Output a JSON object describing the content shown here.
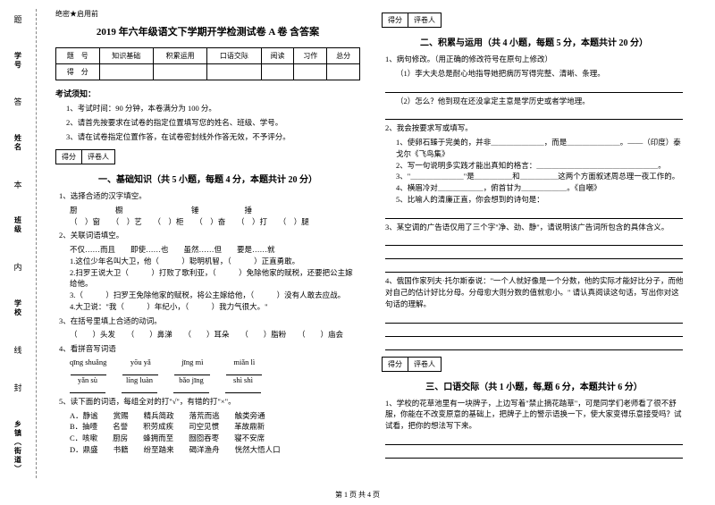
{
  "binding": {
    "labels": [
      "学号",
      "姓名",
      "班级",
      "学校",
      "乡镇（街道）"
    ],
    "marks": [
      "题",
      "答",
      "本",
      "内",
      "线",
      "封"
    ]
  },
  "secret": "绝密★启用前",
  "title": "2019 年六年级语文下学期开学检测试卷 A 卷  含答案",
  "score_table": {
    "row1": [
      "题　号",
      "知识基础",
      "积累运用",
      "口语交际",
      "阅读",
      "习作",
      "总分"
    ],
    "row2": [
      "得　分",
      "",
      "",
      "",
      "",
      "",
      ""
    ]
  },
  "notice_h": "考试须知：",
  "notices": [
    "1、考试时间：90 分钟，本卷满分为 100 分。",
    "2、请首先按要求在试卷的指定位置填写您的姓名、班级、学号。",
    "3、请在试卷指定位置作答，在试卷密封线外作答无效，不予评分。"
  ],
  "scorebox": {
    "a": "得分",
    "b": "评卷人"
  },
  "sec1_h": "一、基础知识（共 5 小题，每题 4 分，本题共计 20 分）",
  "q1": "1、选择合适的汉字填空。",
  "q1_row1": "厨　　　　　橱　　　　　　　　　锤　　　　　　捶",
  "q1_row2": "（　）窗　　（　）艺　　（　）柜　　（　）奋　　（　）打　　（　）腿",
  "q2": "2、关联词语填空。",
  "q2_opts": "不仅……而且　　即使……也　　虽然……但　　要是……就",
  "q2_1": "1.这位少年名叫大卫，他（　　　）聪明机智，（　　　）正直勇敢。",
  "q2_2": "2.扫罗王说大卫（　　　）打败了歌利亚，（　　　）免除他家的赋税，还要把公主嫁给他。",
  "q2_3": "3.（　　　）扫罗王免除他家的赋税，将公主嫁给他，（　　　）没有人敢去应战。",
  "q2_4": "4.大卫说：\"我（　　　）年纪小，（　　　）我力气很大。\"",
  "q3": "3、在括号里填上合适的动词。",
  "q3_sub": "（　　）头发　　（　　）鼻涕　　（　　）耳朵　　（　　）脂粉　　（　　）庙会",
  "q4": "4、看拼音写词语",
  "q4_pinyin": [
    "qīng shuǎng",
    "yōu yǎ",
    "jīng mì",
    "miǎn lì"
  ],
  "q4_pinyin2": [
    "yǎn sù",
    "líng luàn",
    "bǎo jīng",
    "shì shì"
  ],
  "q5": "5、读下面的词语，每组全对的打\"√\"，有错的打\"×\"。",
  "q5a": "A．静谧　　赏赐　　精兵简政　　落荒而逃　　触类旁通",
  "q5b": "B．抽噎　　名誉　　积劳成疾　　司空见惯　　革故鼎新",
  "q5c": "C．咳嗽　　厨房　　蜂拥而至　　囫囵吞枣　　寝不安席",
  "q5d": "D．鼎盛　　书籍　　纷至踏来　　碣洋渔舟　　恍然大悟人口",
  "sec2_h": "二、积累与运用（共 4 小题，每题 5 分，本题共计 20 分）",
  "q2_1h": "1、病句修改。（用正确的修改符号在原句上修改）",
  "q2_1a": "（1）李大夫总是耐心地指导她把病历写得完整、清晰、条理。",
  "q2_1b": "（2）怎么？他到现在还没拿定主意是学历史或者学地理。",
  "q2_2h": "2、我会按要求写或填写。",
  "q2_2a": "1、使卵石臻于完美的，并非＿＿＿＿＿＿＿，而是＿＿＿＿＿＿＿。——（印度）泰戈尔《飞鸟集》",
  "q2_2b": "2、写一句说明多实践才能出真知的格言：＿＿＿＿＿＿＿＿＿＿＿＿＿＿＿＿。",
  "q2_2c": "3、\"＿＿＿＿＿＿＿\"是＿＿＿＿＿和＿＿＿＿＿这两个方面叙述周总理一夜工作的。",
  "q2_2d": "4、横眉冷对＿＿＿＿＿＿，俯首甘为＿＿＿＿＿＿。《自嘲》",
  "q2_2e": "5、比喻人的清廉正直，你会想到的诗句是：",
  "q2_3h": "3、某空调的广告语仅用了三个字\"净、劲、静\"，请说明该广告词所包含的具体含义。",
  "q2_4h": "4、俄国作家列夫·托尔斯泰说：\"一个人就好像是一个分数，他的实际才能好比分子，而他对自己的估计好比分母。分母愈大则分数的值就愈小。\"  请认真阅读这句话，写出你对这句话的理解。",
  "sec3_h": "三、口语交际（共 1 小题，每,题 6 分，本题共计 6 分）",
  "q3_1": "1、学校的花草池里有一块牌子，上边写着\"禁止摘花踏草\"，可是同学们老师看了很不舒服，你能在不改变原意的基础上，把牌子上的警示语换一下，使大家变得乐意接受吗？试试看，把你的想法写下来。",
  "footer": "第 1 页  共 4 页"
}
